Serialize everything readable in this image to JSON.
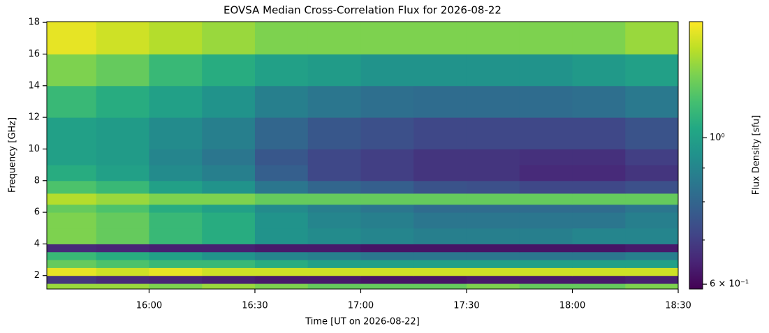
{
  "chart_data": {
    "type": "heatmap",
    "title": "EOVSA Median Cross-Correlation Flux for 2026-08-22",
    "x_label": "Time [UT on 2026-08-22]",
    "y_label": "Frequency [GHz]",
    "colorbar_label": "Flux Density [sfu]",
    "colormap": "viridis",
    "color_scale": "log",
    "xlim": [
      "15:31",
      "18:30"
    ],
    "xticks": [
      "16:00",
      "16:30",
      "17:00",
      "17:30",
      "18:00",
      "18:30"
    ],
    "ylim": [
      1.15,
      18.05
    ],
    "yticks": [
      2,
      4,
      6,
      8,
      10,
      12,
      14,
      16,
      18
    ],
    "clim": [
      0.59,
      1.5
    ],
    "cticks": [
      {
        "value": 1,
        "label": "10⁰"
      },
      {
        "value": 0.6,
        "label": "6 × 10⁻¹"
      }
    ],
    "cminor_ticks": [
      0.7,
      0.8,
      0.9
    ],
    "time_bins": [
      "15:31",
      "15:45",
      "16:00",
      "16:15",
      "16:30",
      "16:45",
      "17:00",
      "17:15",
      "17:30",
      "17:45",
      "18:00",
      "18:15",
      "18:30"
    ],
    "freq_bins": [
      1.15,
      1.5,
      2,
      2.5,
      3,
      3.5,
      4,
      5,
      6,
      6.5,
      7.2,
      8,
      9,
      10,
      12,
      14,
      16,
      18.05
    ],
    "values": [
      [
        1.3,
        1.3,
        1.25,
        1.3,
        1.25,
        1.2,
        1.2,
        1.2,
        1.25,
        1.2,
        1.2,
        1.25
      ],
      [
        0.68,
        0.66,
        0.65,
        0.64,
        0.63,
        0.63,
        0.62,
        0.62,
        0.63,
        0.63,
        0.63,
        0.64
      ],
      [
        1.45,
        1.4,
        1.45,
        1.4,
        1.4,
        1.4,
        1.4,
        1.4,
        1.4,
        1.4,
        1.4,
        1.4
      ],
      [
        1.2,
        1.15,
        1.1,
        1.1,
        1.05,
        1.0,
        1.0,
        1.0,
        1.0,
        1.0,
        1.0,
        1.0
      ],
      [
        1.1,
        1.05,
        1.0,
        0.95,
        0.9,
        0.88,
        0.85,
        0.85,
        0.85,
        0.85,
        0.85,
        0.88
      ],
      [
        0.66,
        0.65,
        0.64,
        0.64,
        0.63,
        0.63,
        0.62,
        0.62,
        0.62,
        0.62,
        0.62,
        0.63
      ],
      [
        1.25,
        1.2,
        1.1,
        1.05,
        0.95,
        0.92,
        0.9,
        0.88,
        0.88,
        0.88,
        0.9,
        0.9
      ],
      [
        1.25,
        1.2,
        1.1,
        1.05,
        0.95,
        0.9,
        0.88,
        0.85,
        0.85,
        0.85,
        0.85,
        0.88
      ],
      [
        1.2,
        1.15,
        1.05,
        1.0,
        0.92,
        0.88,
        0.85,
        0.82,
        0.82,
        0.82,
        0.82,
        0.85
      ],
      [
        1.35,
        1.3,
        1.25,
        1.25,
        1.2,
        1.2,
        1.2,
        1.2,
        1.2,
        1.2,
        1.2,
        1.2
      ],
      [
        1.15,
        1.1,
        1.0,
        0.95,
        0.85,
        0.8,
        0.78,
        0.75,
        0.74,
        0.72,
        0.72,
        0.74
      ],
      [
        1.05,
        1.0,
        0.92,
        0.88,
        0.78,
        0.72,
        0.7,
        0.68,
        0.68,
        0.66,
        0.66,
        0.68
      ],
      [
        1.0,
        0.98,
        0.9,
        0.85,
        0.76,
        0.72,
        0.7,
        0.68,
        0.68,
        0.67,
        0.67,
        0.7
      ],
      [
        1.0,
        0.98,
        0.92,
        0.88,
        0.8,
        0.76,
        0.74,
        0.72,
        0.72,
        0.72,
        0.72,
        0.75
      ],
      [
        1.1,
        1.05,
        1.0,
        0.95,
        0.88,
        0.85,
        0.83,
        0.82,
        0.82,
        0.82,
        0.83,
        0.86
      ],
      [
        1.25,
        1.2,
        1.1,
        1.05,
        1.0,
        0.98,
        0.95,
        0.95,
        0.95,
        0.95,
        0.97,
        1.0
      ],
      [
        1.45,
        1.4,
        1.35,
        1.3,
        1.25,
        1.25,
        1.25,
        1.25,
        1.25,
        1.25,
        1.25,
        1.3
      ]
    ]
  }
}
